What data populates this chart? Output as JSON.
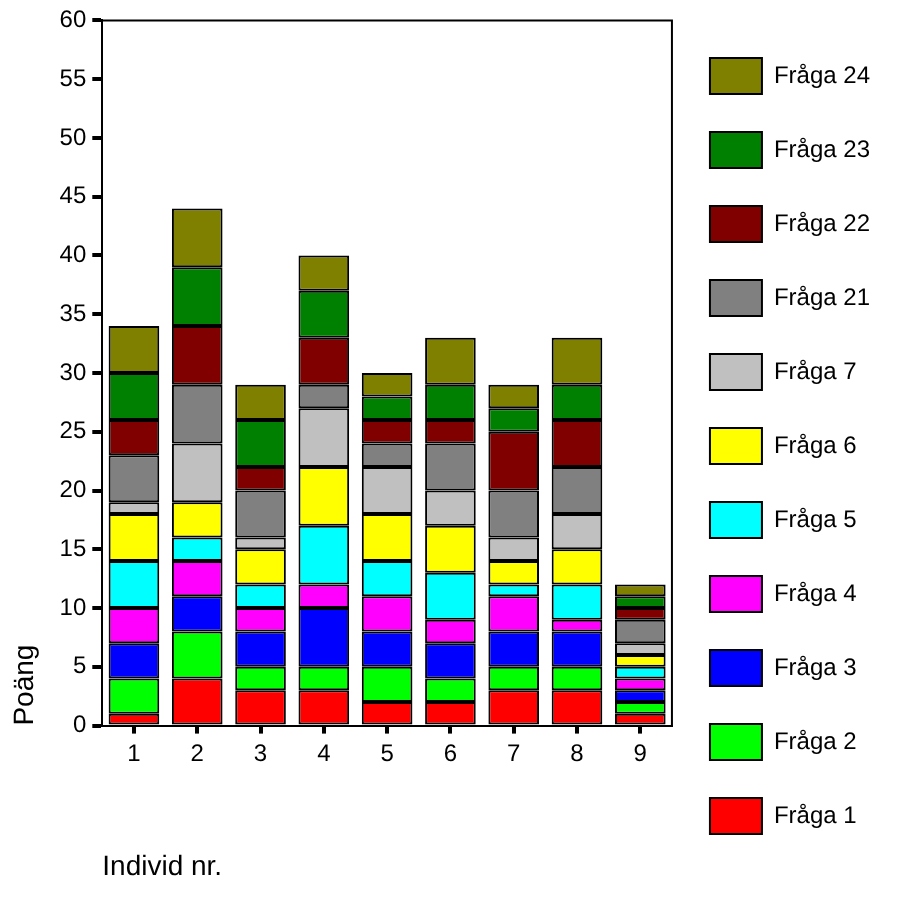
{
  "chart_data": {
    "type": "bar",
    "stacked": true,
    "xlabel": "Individ nr.",
    "ylabel": "Poäng",
    "categories": [
      "1",
      "2",
      "3",
      "4",
      "5",
      "6",
      "7",
      "8",
      "9"
    ],
    "ylim": [
      0,
      60
    ],
    "yticks": [
      0,
      5,
      10,
      15,
      20,
      25,
      30,
      35,
      40,
      45,
      50,
      55,
      60
    ],
    "grid": false,
    "legend": "right",
    "series": [
      {
        "name": "Fråga 1",
        "color": "#ff0000",
        "values": [
          1,
          4,
          3,
          3,
          2,
          2,
          3,
          3,
          1
        ]
      },
      {
        "name": "Fråga 2",
        "color": "#00ff00",
        "values": [
          3,
          4,
          2,
          2,
          3,
          2,
          2,
          2,
          1
        ]
      },
      {
        "name": "Fråga 3",
        "color": "#0000ff",
        "values": [
          3,
          3,
          3,
          5,
          3,
          3,
          3,
          3,
          1
        ]
      },
      {
        "name": "Fråga 4",
        "color": "#ff00ff",
        "values": [
          3,
          3,
          2,
          2,
          3,
          2,
          3,
          1,
          1
        ]
      },
      {
        "name": "Fråga 5",
        "color": "#00ffff",
        "values": [
          4,
          2,
          2,
          5,
          3,
          4,
          1,
          3,
          1
        ]
      },
      {
        "name": "Fråga 6",
        "color": "#ffff00",
        "values": [
          4,
          3,
          3,
          5,
          4,
          4,
          2,
          3,
          1
        ]
      },
      {
        "name": "Fråga 7",
        "color": "#c0c0c0",
        "values": [
          1,
          5,
          1,
          5,
          4,
          3,
          2,
          3,
          1
        ]
      },
      {
        "name": "Fråga 21",
        "color": "#808080",
        "values": [
          4,
          5,
          4,
          2,
          2,
          4,
          4,
          4,
          2
        ]
      },
      {
        "name": "Fråga 22",
        "color": "#800000",
        "values": [
          3,
          5,
          2,
          4,
          2,
          2,
          5,
          4,
          1
        ]
      },
      {
        "name": "Fråga 23",
        "color": "#008000",
        "values": [
          4,
          5,
          4,
          4,
          2,
          3,
          2,
          3,
          1
        ]
      },
      {
        "name": "Fråga 24",
        "color": "#808000",
        "values": [
          4,
          5,
          3,
          3,
          2,
          4,
          2,
          4,
          1
        ]
      }
    ]
  }
}
